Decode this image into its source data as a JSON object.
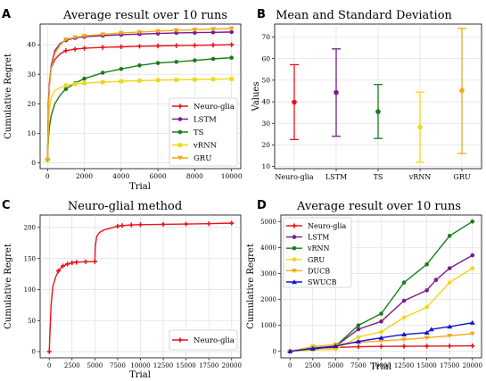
{
  "figure": {
    "panels": [
      {
        "letter": "A",
        "title": "Average result over 10 runs",
        "xlabel": "Trial",
        "ylabel": "Cumulative Regret",
        "xlim": [
          -400,
          10500
        ],
        "ylim": [
          -2,
          47
        ],
        "xticks": [
          0,
          2000,
          4000,
          6000,
          8000,
          10000
        ],
        "yticks": [
          0,
          10,
          20,
          30,
          40
        ],
        "legend": "lower-right",
        "grid": true,
        "type": "line"
      },
      {
        "letter": "B",
        "title": "Mean and Standard Deviation",
        "xlabel": "",
        "ylabel": "Values",
        "ylim": [
          9,
          76
        ],
        "yticks": [
          10,
          20,
          30,
          40,
          50,
          60,
          70
        ],
        "grid": true,
        "type": "errorbar"
      },
      {
        "letter": "C",
        "title": "Neuro-glial method",
        "xlabel": "Trial",
        "ylabel": "Cumulative Regret",
        "xlim": [
          -1000,
          21000
        ],
        "ylim": [
          -10,
          220
        ],
        "xticks": [
          0,
          2500,
          5000,
          7500,
          10000,
          12500,
          15000,
          17500,
          20000
        ],
        "yticks": [
          0,
          50,
          100,
          150,
          200
        ],
        "legend": "lower-right",
        "grid": true,
        "type": "line"
      },
      {
        "letter": "D",
        "title": "Average result over 10 runs",
        "xlabel": "Trial",
        "ylabel": "Cumulative Regret",
        "xlim": [
          -1000,
          21000
        ],
        "ylim": [
          -250,
          5250
        ],
        "xticks": [
          0,
          2500,
          5000,
          7500,
          10000,
          12500,
          15000,
          17500,
          20000
        ],
        "yticks": [
          0,
          1000,
          2000,
          3000,
          4000,
          5000
        ],
        "legend": "upper-left",
        "grid": true,
        "type": "line"
      }
    ]
  },
  "chart_data": [
    {
      "type": "line",
      "title": "Average result over 10 runs",
      "xlabel": "Trial",
      "ylabel": "Cumulative Regret",
      "series": [
        {
          "name": "Neuro-glia",
          "color": "#e8141a",
          "marker": "plus",
          "x": [
            0,
            50,
            100,
            200,
            400,
            700,
            1000,
            1500,
            2000,
            3000,
            4000,
            5000,
            6000,
            7000,
            8000,
            9000,
            10000
          ],
          "y": [
            1,
            20,
            27,
            32,
            35,
            37,
            38,
            38.5,
            38.8,
            39.1,
            39.3,
            39.5,
            39.6,
            39.7,
            39.8,
            39.9,
            40
          ]
        },
        {
          "name": "LSTM",
          "color": "#7b1a8c",
          "marker": "circle",
          "x": [
            0,
            50,
            100,
            200,
            400,
            700,
            1000,
            1500,
            2000,
            3000,
            4000,
            5000,
            6000,
            7000,
            8000,
            9000,
            10000
          ],
          "y": [
            1,
            18,
            26,
            33,
            38,
            40.5,
            41.5,
            42.3,
            42.7,
            43.1,
            43.4,
            43.6,
            43.8,
            44,
            44.1,
            44.2,
            44.3
          ]
        },
        {
          "name": "TS",
          "color": "#1a7c1a",
          "marker": "circle",
          "x": [
            0,
            50,
            100,
            200,
            400,
            700,
            1000,
            1500,
            2000,
            3000,
            4000,
            5000,
            6000,
            7000,
            8000,
            9000,
            10000
          ],
          "y": [
            1,
            8,
            12,
            16,
            20,
            23,
            25,
            27,
            28.5,
            30.5,
            31.8,
            33,
            33.8,
            34.2,
            34.7,
            35.2,
            35.6
          ]
        },
        {
          "name": "vRNN",
          "color": "#f2d61a",
          "marker": "square",
          "x": [
            0,
            50,
            100,
            200,
            400,
            700,
            1000,
            1500,
            2000,
            3000,
            4000,
            5000,
            6000,
            7000,
            8000,
            9000,
            10000
          ],
          "y": [
            1,
            12,
            18,
            22,
            24.5,
            25.5,
            26.2,
            26.7,
            27,
            27.3,
            27.6,
            27.8,
            28,
            28.1,
            28.2,
            28.3,
            28.4
          ]
        },
        {
          "name": "GRU",
          "color": "#f4a81c",
          "marker": "triangle-down",
          "x": [
            0,
            50,
            100,
            200,
            400,
            700,
            1000,
            1500,
            2000,
            3000,
            4000,
            5000,
            6000,
            7000,
            8000,
            9000,
            10000
          ],
          "y": [
            1,
            17,
            25,
            32,
            37,
            40,
            41.8,
            42.5,
            43,
            43.5,
            44,
            44.3,
            44.6,
            44.9,
            45.1,
            45.3,
            45.5
          ]
        }
      ]
    },
    {
      "type": "errorbar",
      "title": "Mean and Standard Deviation",
      "ylabel": "Values",
      "categories": [
        "Neuro-glia",
        "LSTM",
        "TS",
        "vRNN",
        "GRU"
      ],
      "colors": [
        "#e8141a",
        "#7b1a8c",
        "#1a7c1a",
        "#f2d61a",
        "#f4a81c"
      ],
      "mean": [
        39.8,
        44.3,
        35.4,
        28.2,
        45.2
      ],
      "lower": [
        22.5,
        24,
        23,
        12,
        16
      ],
      "upper": [
        57.2,
        64.5,
        48,
        44.5,
        74
      ]
    },
    {
      "type": "line",
      "title": "Neuro-glial method",
      "xlabel": "Trial",
      "ylabel": "Cumulative Regret",
      "series": [
        {
          "name": "Neuro-glia",
          "color": "#e8141a",
          "marker": "plus",
          "x": [
            0,
            100,
            200,
            400,
            700,
            1000,
            1500,
            2000,
            2500,
            3000,
            4000,
            5000,
            5050,
            5200,
            5500,
            6000,
            7000,
            7500,
            8000,
            9000,
            10000,
            12500,
            15000,
            17500,
            20000
          ],
          "y": [
            0,
            40,
            75,
            105,
            120,
            130,
            138,
            141,
            143,
            144,
            144.8,
            145,
            170,
            185,
            192,
            196,
            200,
            202,
            203,
            204,
            204.5,
            205,
            205.5,
            206,
            207
          ]
        }
      ]
    },
    {
      "type": "line",
      "title": "Average result over 10 runs",
      "xlabel": "Trial",
      "ylabel": "Cumulative Regret",
      "series": [
        {
          "name": "Neuro-glia",
          "color": "#e8141a",
          "marker": "plus",
          "x": [
            0,
            2500,
            5000,
            7500,
            10000,
            12500,
            15000,
            17500,
            20000
          ],
          "y": [
            0,
            120,
            145,
            175,
            190,
            195,
            200,
            205,
            210
          ]
        },
        {
          "name": "LSTM",
          "color": "#7b1a8c",
          "marker": "circle",
          "x": [
            0,
            2500,
            5000,
            7500,
            10000,
            12500,
            15000,
            16000,
            17500,
            20000
          ],
          "y": [
            0,
            80,
            200,
            850,
            1150,
            1950,
            2350,
            2750,
            3200,
            3700
          ]
        },
        {
          "name": "vRNN",
          "color": "#1a7c1a",
          "marker": "circle",
          "x": [
            0,
            2500,
            5000,
            7500,
            10000,
            12500,
            15000,
            17500,
            20000
          ],
          "y": [
            0,
            120,
            200,
            1000,
            1450,
            2650,
            3350,
            4450,
            5000
          ]
        },
        {
          "name": "GRU",
          "color": "#f2d61a",
          "marker": "circle",
          "x": [
            0,
            2500,
            5000,
            7500,
            10000,
            12500,
            15000,
            17500,
            20000
          ],
          "y": [
            0,
            50,
            80,
            550,
            750,
            1300,
            1700,
            2650,
            3200
          ]
        },
        {
          "name": "DUCB",
          "color": "#f4a81c",
          "marker": "triangle-down",
          "x": [
            0,
            2500,
            5000,
            7500,
            10000,
            12500,
            15000,
            17500,
            20000
          ],
          "y": [
            0,
            180,
            260,
            340,
            400,
            450,
            520,
            600,
            680
          ]
        },
        {
          "name": "SWUCB",
          "color": "#1414d6",
          "marker": "triangle-up",
          "x": [
            0,
            2500,
            5000,
            7500,
            10000,
            12500,
            15000,
            15500,
            17500,
            20000
          ],
          "y": [
            0,
            100,
            200,
            380,
            520,
            650,
            720,
            850,
            950,
            1100
          ]
        }
      ]
    }
  ]
}
